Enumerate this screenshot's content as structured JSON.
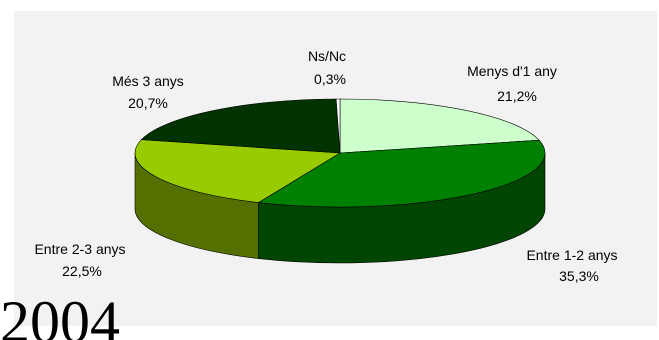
{
  "chart_data": {
    "type": "pie",
    "style": "3d",
    "slices": [
      {
        "label": "Menys d'1 any",
        "value": 21.2,
        "value_label": "21,2%",
        "color": "#ccffcc"
      },
      {
        "label": "Entre 1-2 anys",
        "value": 35.3,
        "value_label": "35,3%",
        "color": "#008000"
      },
      {
        "label": "Entre 2-3 anys",
        "value": 22.5,
        "value_label": "22,5%",
        "color": "#99cc00"
      },
      {
        "label": "Més 3 anys",
        "value": 20.7,
        "value_label": "20,7%",
        "color": "#003300"
      },
      {
        "label": "Ns/Nc",
        "value": 0.3,
        "value_label": "0,3%",
        "color": "#ffffff"
      }
    ],
    "legend": "none",
    "background": "#f2f2f2"
  },
  "cropped_text": "2004"
}
